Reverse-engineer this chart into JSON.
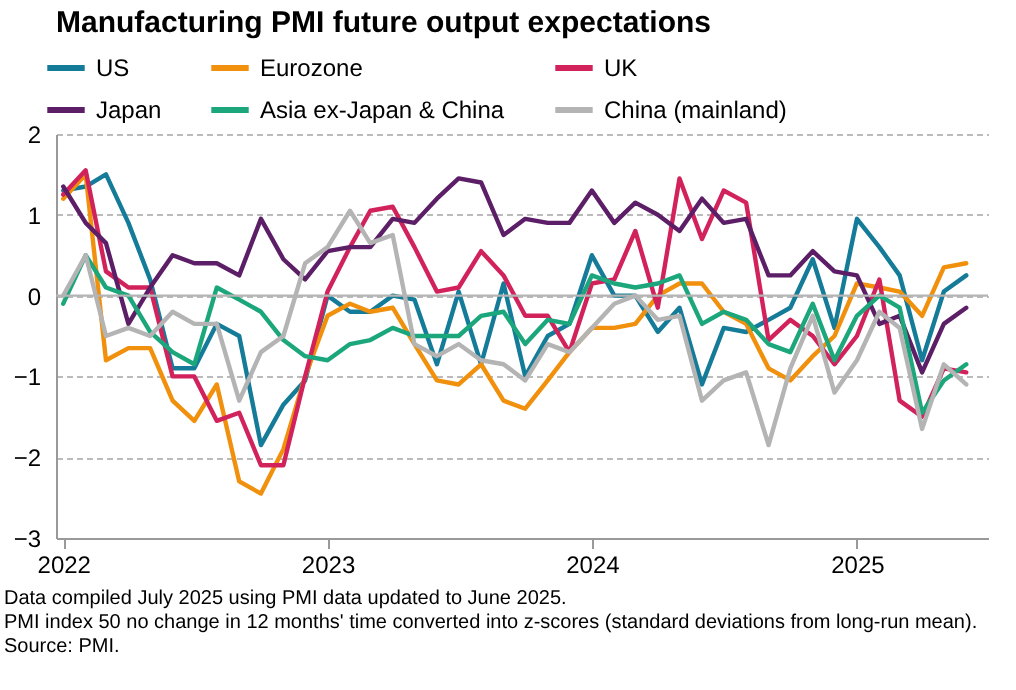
{
  "chart_data": {
    "type": "line",
    "title": "Manufacturing PMI future output expectations",
    "x": [
      "2022-01",
      "2022-02",
      "2022-03",
      "2022-04",
      "2022-05",
      "2022-06",
      "2022-07",
      "2022-08",
      "2022-09",
      "2022-10",
      "2022-11",
      "2022-12",
      "2023-01",
      "2023-02",
      "2023-03",
      "2023-04",
      "2023-05",
      "2023-06",
      "2023-07",
      "2023-08",
      "2023-09",
      "2023-10",
      "2023-11",
      "2023-12",
      "2024-01",
      "2024-02",
      "2024-03",
      "2024-04",
      "2024-05",
      "2024-06",
      "2024-07",
      "2024-08",
      "2024-09",
      "2024-10",
      "2024-11",
      "2024-12",
      "2025-01",
      "2025-02",
      "2025-03",
      "2025-04",
      "2025-05",
      "2025-06"
    ],
    "series": [
      {
        "name": "US",
        "color": "#147b98",
        "values": [
          1.3,
          1.35,
          1.5,
          0.9,
          0.2,
          -0.9,
          -0.9,
          -0.35,
          -0.5,
          -1.85,
          -1.35,
          -1.05,
          0.0,
          -0.2,
          -0.2,
          0.0,
          -0.05,
          -0.85,
          0.05,
          -0.85,
          0.15,
          -1.0,
          -0.5,
          -0.35,
          0.5,
          0.0,
          0.0,
          -0.45,
          -0.15,
          -1.1,
          -0.4,
          -0.45,
          -0.3,
          -0.15,
          0.45,
          -0.4,
          0.95,
          0.6,
          0.25,
          -0.8,
          0.05,
          0.25
        ]
      },
      {
        "name": "Eurozone",
        "color": "#f0900c",
        "values": [
          1.2,
          1.5,
          -0.8,
          -0.65,
          -0.65,
          -1.3,
          -1.55,
          -1.1,
          -2.3,
          -2.45,
          -1.9,
          -1.0,
          -0.25,
          -0.1,
          -0.2,
          -0.15,
          -0.6,
          -1.05,
          -1.1,
          -0.85,
          -1.3,
          -1.4,
          -1.05,
          -0.7,
          -0.4,
          -0.4,
          -0.35,
          0.0,
          0.15,
          0.15,
          -0.2,
          -0.35,
          -0.9,
          -1.05,
          -0.75,
          -0.5,
          0.15,
          0.1,
          0.05,
          -0.25,
          0.35,
          0.4
        ]
      },
      {
        "name": "UK",
        "color": "#d2225c",
        "values": [
          1.25,
          1.55,
          0.3,
          0.1,
          0.1,
          -1.0,
          -1.0,
          -1.55,
          -1.45,
          -2.1,
          -2.1,
          -1.0,
          0.05,
          0.6,
          1.05,
          1.1,
          0.6,
          0.05,
          0.1,
          0.55,
          0.25,
          -0.25,
          -0.25,
          -0.7,
          0.15,
          0.2,
          0.8,
          -0.15,
          1.45,
          0.7,
          1.3,
          1.15,
          -0.55,
          -0.3,
          -0.5,
          -0.85,
          -0.5,
          0.2,
          -1.3,
          -1.5,
          -0.9,
          -0.95
        ]
      },
      {
        "name": "Japan",
        "color": "#5c1e66",
        "values": [
          1.35,
          0.9,
          0.65,
          -0.35,
          0.1,
          0.5,
          0.4,
          0.4,
          0.25,
          0.95,
          0.45,
          0.2,
          0.55,
          0.6,
          0.6,
          0.95,
          0.9,
          1.2,
          1.45,
          1.4,
          0.75,
          0.95,
          0.9,
          0.9,
          1.3,
          0.9,
          1.15,
          1.0,
          0.8,
          1.2,
          0.9,
          0.95,
          0.25,
          0.25,
          0.55,
          0.3,
          0.25,
          -0.35,
          -0.25,
          -0.95,
          -0.35,
          -0.15
        ]
      },
      {
        "name": "Asia ex-Japan & China",
        "color": "#1ba67c",
        "values": [
          -0.1,
          0.5,
          0.1,
          0.0,
          -0.45,
          -0.7,
          -0.85,
          0.1,
          -0.05,
          -0.2,
          -0.55,
          -0.75,
          -0.8,
          -0.6,
          -0.55,
          -0.4,
          -0.5,
          -0.5,
          -0.5,
          -0.25,
          -0.2,
          -0.6,
          -0.3,
          -0.35,
          0.25,
          0.15,
          0.1,
          0.15,
          0.25,
          -0.35,
          -0.2,
          -0.3,
          -0.6,
          -0.7,
          -0.1,
          -0.8,
          -0.25,
          0.0,
          -0.15,
          -1.45,
          -1.05,
          -0.85
        ]
      },
      {
        "name": "China (mainland)",
        "color": "#b4b4b4",
        "values": [
          0.0,
          0.5,
          -0.5,
          -0.4,
          -0.5,
          -0.2,
          -0.35,
          -0.35,
          -1.3,
          -0.7,
          -0.5,
          0.4,
          0.6,
          1.05,
          0.65,
          0.75,
          -0.6,
          -0.75,
          -0.6,
          -0.8,
          -0.85,
          -1.05,
          -0.6,
          -0.7,
          -0.4,
          -0.1,
          0.0,
          -0.3,
          -0.25,
          -1.3,
          -1.05,
          -0.95,
          -1.85,
          -0.9,
          -0.25,
          -1.2,
          -0.8,
          -0.2,
          -0.4,
          -1.65,
          -0.85,
          -1.1
        ]
      }
    ],
    "xlim": [
      "2021-12-22",
      "2025-07-01"
    ],
    "xticks": [
      {
        "value": "2022-01",
        "label": "2022"
      },
      {
        "value": "2023-01",
        "label": "2023"
      },
      {
        "value": "2024-01",
        "label": "2024"
      },
      {
        "value": "2025-01",
        "label": "2025"
      }
    ],
    "ylim": [
      -3,
      2
    ],
    "yticks": [
      -3,
      -2,
      -1,
      0,
      1,
      2
    ],
    "ref_lines": [
      {
        "axis": "y",
        "value": 0,
        "color": "#b4b4b4"
      }
    ],
    "grid": "y",
    "legend": "top",
    "line_style": "solid",
    "annotations": [
      "Data compiled July 2025 using PMI data updated to June 2025.",
      "PMI index 50 no change in 12 months' time converted into z-scores (standard deviations from long-run mean).",
      "Source: PMI."
    ]
  }
}
